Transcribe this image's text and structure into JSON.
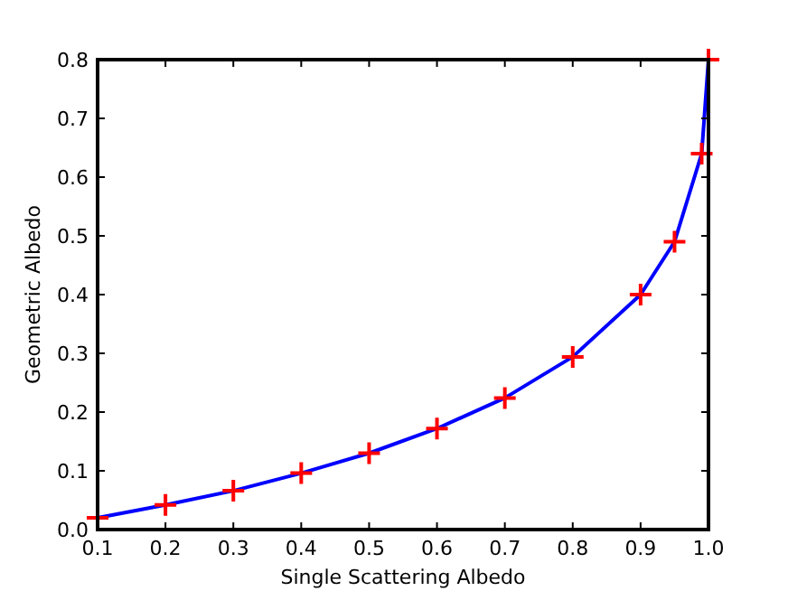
{
  "chart_data": {
    "type": "line",
    "xlabel": "Single Scattering Albedo",
    "ylabel": "Geometric Albedo",
    "xlim": [
      0.1,
      1.0
    ],
    "ylim": [
      0,
      0.8
    ],
    "xticks": [
      {
        "value": 0.1,
        "label": "0.1"
      },
      {
        "value": 0.2,
        "label": "0.2"
      },
      {
        "value": 0.3,
        "label": "0.3"
      },
      {
        "value": 0.4,
        "label": "0.4"
      },
      {
        "value": 0.5,
        "label": "0.5"
      },
      {
        "value": 0.6,
        "label": "0.6"
      },
      {
        "value": 0.7,
        "label": "0.7"
      },
      {
        "value": 0.8,
        "label": "0.8"
      },
      {
        "value": 0.9,
        "label": "0.9"
      },
      {
        "value": 1.0,
        "label": "1.0"
      }
    ],
    "yticks": [
      {
        "value": 0,
        "label": "0.0"
      },
      {
        "value": 0.1,
        "label": "0.1"
      },
      {
        "value": 0.2,
        "label": "0.2"
      },
      {
        "value": 0.3,
        "label": "0.3"
      },
      {
        "value": 0.4,
        "label": "0.4"
      },
      {
        "value": 0.5,
        "label": "0.5"
      },
      {
        "value": 0.6,
        "label": "0.6"
      },
      {
        "value": 0.7,
        "label": "0.7"
      },
      {
        "value": 0.8,
        "label": "0.8"
      }
    ],
    "x": [
      0.1,
      0.2,
      0.3,
      0.4,
      0.5,
      0.6,
      0.7,
      0.8,
      0.9,
      0.95,
      0.99,
      1.0
    ],
    "series": [
      {
        "color": "#0000ff",
        "marker": "none",
        "line_style": "solid",
        "values": [
          0.02,
          0.042,
          0.066,
          0.096,
          0.13,
          0.172,
          0.224,
          0.294,
          0.4,
          0.49,
          0.64,
          0.8
        ]
      },
      {
        "type": "scatter",
        "color": "#ff0000",
        "marker": "cross",
        "values": [
          0.02,
          0.042,
          0.066,
          0.096,
          0.13,
          0.172,
          0.224,
          0.294,
          0.4,
          0.49,
          0.64,
          0.8
        ]
      }
    ],
    "grid": false
  }
}
